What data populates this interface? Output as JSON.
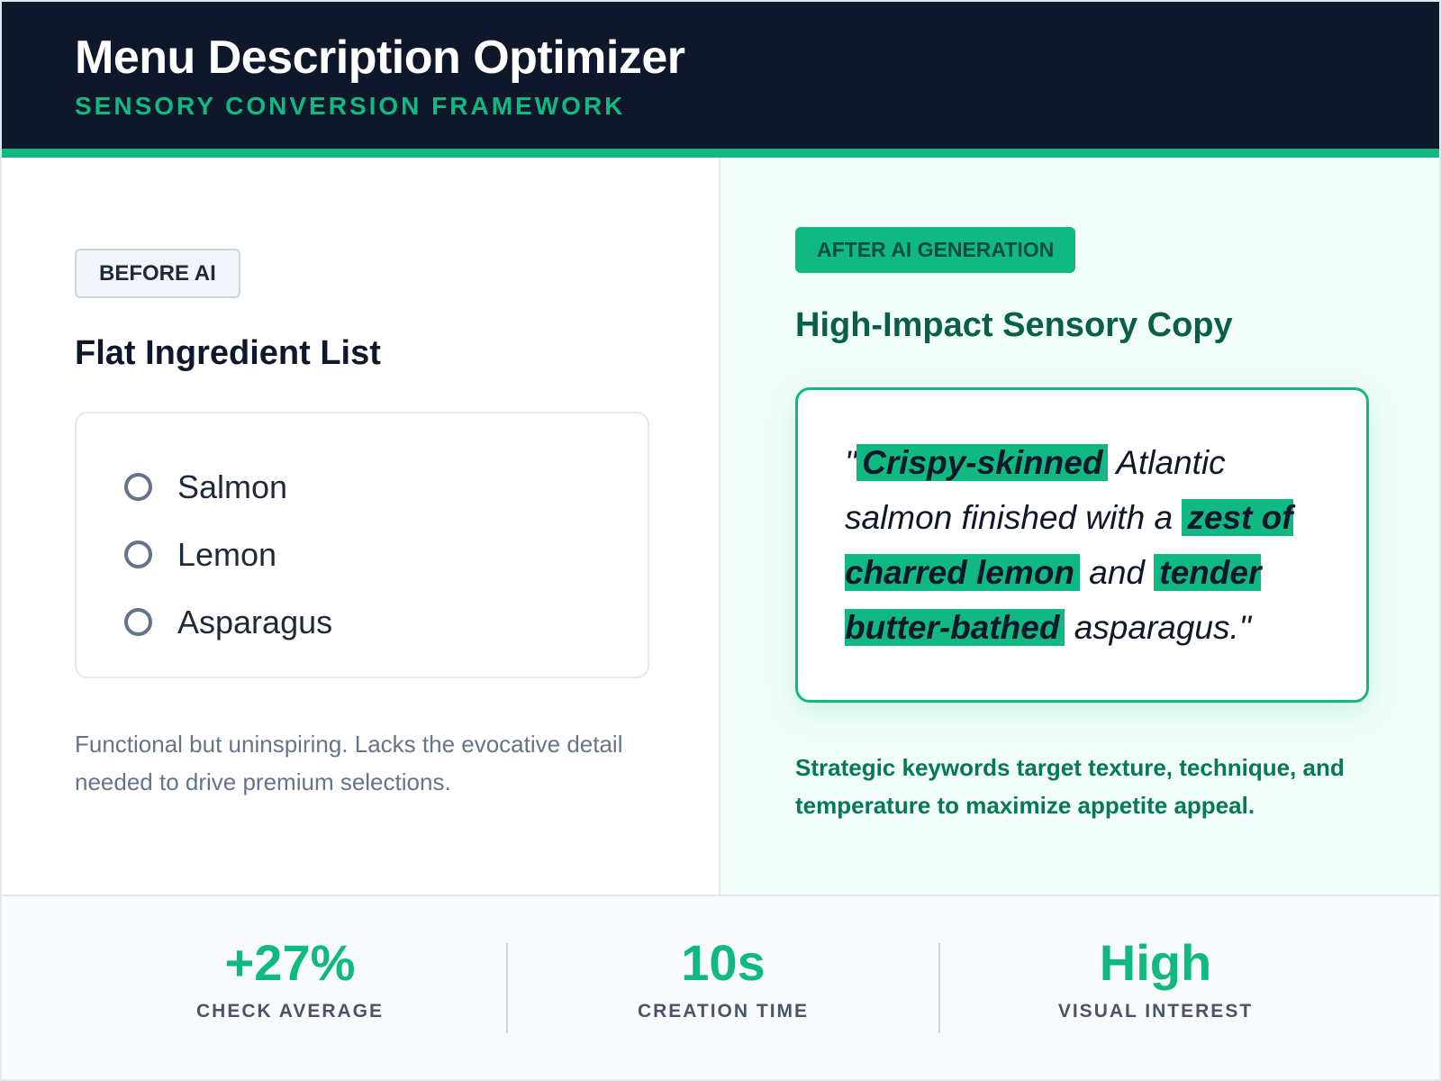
{
  "header": {
    "title": "Menu Description Optimizer",
    "subtitle": "SENSORY CONVERSION FRAMEWORK"
  },
  "before": {
    "badge": "BEFORE AI",
    "heading": "Flat Ingredient List",
    "items": [
      "Salmon",
      "Lemon",
      "Asparagus"
    ],
    "caption": "Functional but uninspiring. Lacks the evocative detail needed to drive premium selections."
  },
  "after": {
    "badge": "AFTER AI GENERATION",
    "heading": "High-Impact Sensory Copy",
    "copy": {
      "q1": "\"",
      "k1": "Crispy-skinned",
      "t1": " Atlantic salmon finished with a ",
      "k2": "zest of charred lemon",
      "t2": " and ",
      "k3": "tender butter-bathed",
      "t3": " asparagus.\""
    },
    "caption": "Strategic keywords target texture, technique, and temperature to maximize appetite appeal."
  },
  "stats": [
    {
      "value": "+27%",
      "label": "CHECK AVERAGE"
    },
    {
      "value": "10s",
      "label": "CREATION TIME"
    },
    {
      "value": "High",
      "label": "VISUAL INTEREST"
    }
  ],
  "colors": {
    "accent": "#10b981",
    "header_bg": "#0f172a",
    "after_bg": "#f0fdf9"
  }
}
